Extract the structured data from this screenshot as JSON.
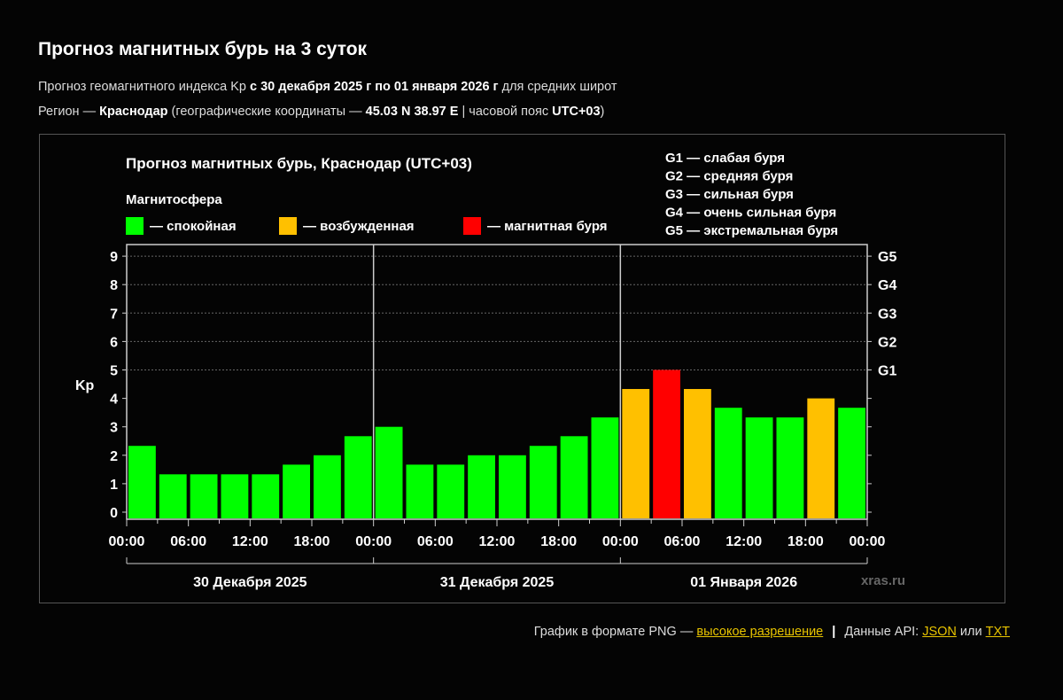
{
  "header": {
    "title": "Прогноз магнитных бурь на 3 суток",
    "line1_pre": "Прогноз геомагнитного индекса Kp ",
    "line1_bold": "с 30 декабря 2025 г по 01 января 2026 г",
    "line1_post": " для средних широт",
    "line2_pre": "Регион — ",
    "region": "Краснодар",
    "line2_mid": " (географические координаты — ",
    "coords": "45.03 N 38.97 E",
    "line2_mid2": " | часовой пояс ",
    "tz": "UTC+03",
    "line2_post": ")"
  },
  "chart_data": {
    "type": "bar",
    "title": "Прогноз магнитных бурь, Краснодар (UTC+03)",
    "ylabel": "Kp",
    "ylim": [
      0,
      9
    ],
    "yticks": [
      "0",
      "1",
      "2",
      "3",
      "4",
      "5",
      "6",
      "7",
      "8",
      "9"
    ],
    "right_ticks": [
      {
        "value": 5,
        "label": "G1"
      },
      {
        "value": 6,
        "label": "G2"
      },
      {
        "value": 7,
        "label": "G3"
      },
      {
        "value": 8,
        "label": "G4"
      },
      {
        "value": 9,
        "label": "G5"
      }
    ],
    "xtick_labels": [
      "00:00",
      "06:00",
      "12:00",
      "18:00",
      "00:00",
      "06:00",
      "12:00",
      "18:00",
      "00:00",
      "06:00",
      "12:00",
      "18:00",
      "00:00"
    ],
    "days": [
      "30 Декабря 2025",
      "31 Декабря 2025",
      "01 Января 2026"
    ],
    "values": [
      2.33,
      1.33,
      1.33,
      1.33,
      1.33,
      1.67,
      2.0,
      2.67,
      3.0,
      1.67,
      1.67,
      2.0,
      2.0,
      2.33,
      2.67,
      3.33,
      4.33,
      5.0,
      4.33,
      3.67,
      3.33,
      3.33,
      4.0,
      3.67
    ],
    "legend_title": "Магнитосфера",
    "legend": [
      {
        "label": "— спокойная",
        "color": "#00ff00"
      },
      {
        "label": "— возбужденная",
        "color": "#ffc000"
      },
      {
        "label": "— магнитная буря",
        "color": "#ff0000"
      }
    ],
    "g_legend": [
      "G1 — слабая буря",
      "G2 — средняя буря",
      "G3 — сильная буря",
      "G4 — очень сильная буря",
      "G5 — экстремальная буря"
    ],
    "watermark": "xras.ru"
  },
  "footer": {
    "png_text": "График в формате PNG — ",
    "png_link": "высокое разрешение",
    "sep": " | ",
    "api_text": "Данные API: ",
    "json_link": "JSON",
    "or": " или ",
    "txt_link": "TXT"
  }
}
